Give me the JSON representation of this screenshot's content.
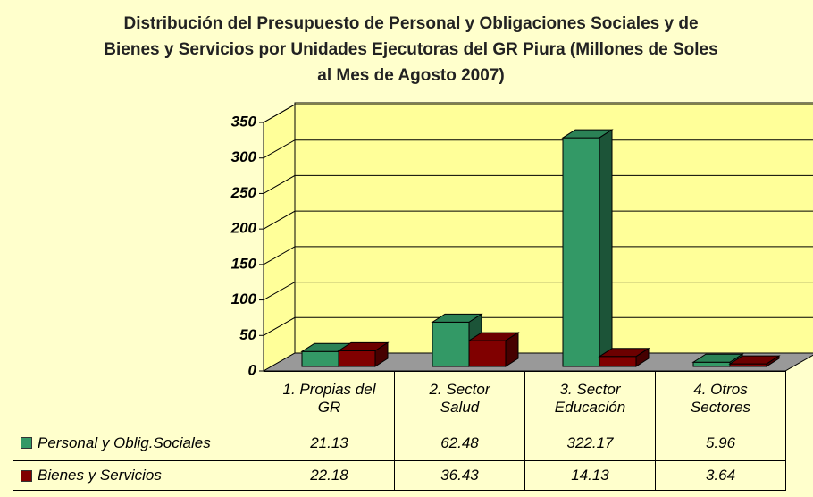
{
  "chart_data": {
    "type": "bar3d",
    "title": "Distribución del Presupuesto de Personal y Obligaciones Sociales y de Bienes y Servicios por Unidades Ejecutoras del GR Piura (Millones de Soles al Mes de Agosto 2007)",
    "categories": [
      "1. Propias del GR",
      "2. Sector Salud",
      "3. Sector Educación",
      "4. Otros Sectores"
    ],
    "series": [
      {
        "name": "Personal y Oblig.Sociales",
        "color": "#339966",
        "values": [
          21.13,
          62.48,
          322.17,
          5.96
        ]
      },
      {
        "name": "Bienes y Servicios",
        "color": "#800000",
        "values": [
          22.18,
          36.43,
          14.13,
          3.64
        ]
      }
    ],
    "ylim": [
      0,
      350
    ],
    "yticks": [
      0,
      50,
      100,
      150,
      200,
      250,
      300,
      350
    ],
    "grid": true,
    "data_table": true
  }
}
